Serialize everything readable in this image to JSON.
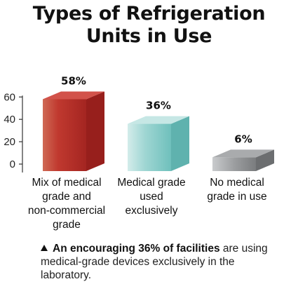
{
  "title_lines": [
    "Types of Refrigeration",
    "Units in Use"
  ],
  "chart_data": {
    "type": "bar",
    "title": "Types of Refrigeration Units in Use",
    "categories": [
      [
        "Mix of medical",
        "grade and",
        "non-commercial",
        "grade"
      ],
      [
        "Medical grade",
        "used",
        "exclusively"
      ],
      [
        "No medical",
        "grade in use"
      ]
    ],
    "values": [
      58,
      36,
      6
    ],
    "value_labels": [
      "58%",
      "36%",
      "6%"
    ],
    "y_ticks": [
      0,
      20,
      40,
      60
    ],
    "ylim": [
      0,
      60
    ],
    "xlabel": "",
    "ylabel": "",
    "grid": false,
    "colors": [
      "#b8312d",
      "#86ccc9",
      "#8c8e90"
    ]
  },
  "note": {
    "bold": "An encouraging 36% of facilities",
    "rest": " are using medical-grade devices exclusively in the laboratory."
  }
}
